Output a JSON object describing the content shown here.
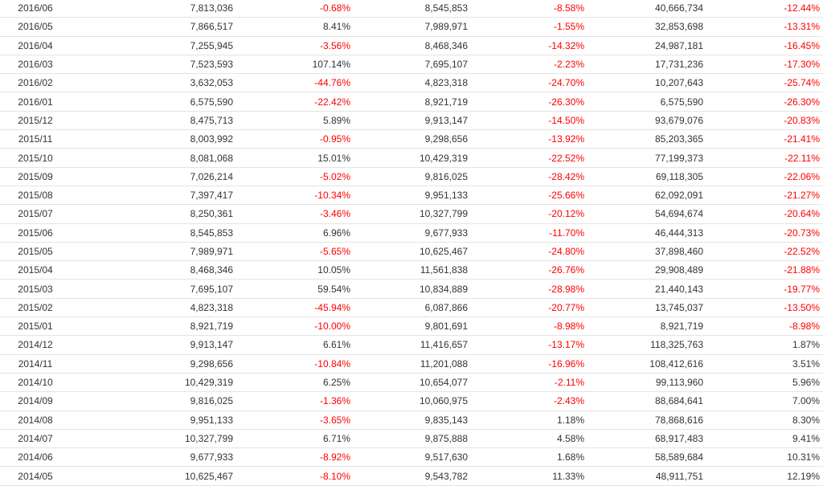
{
  "colors": {
    "negative": "#ff0000",
    "positive": "#333333",
    "border": "#e4e4e4"
  },
  "rows": [
    {
      "period": "2016/06",
      "monthly": "7,813,036",
      "monthly_change": "-0.68%",
      "prev_year": "8,545,853",
      "yoy_change": "-8.58%",
      "cumulative": "40,666,734",
      "cumulative_change": "-12.44%"
    },
    {
      "period": "2016/05",
      "monthly": "7,866,517",
      "monthly_change": "8.41%",
      "prev_year": "7,989,971",
      "yoy_change": "-1.55%",
      "cumulative": "32,853,698",
      "cumulative_change": "-13.31%"
    },
    {
      "period": "2016/04",
      "monthly": "7,255,945",
      "monthly_change": "-3.56%",
      "prev_year": "8,468,346",
      "yoy_change": "-14.32%",
      "cumulative": "24,987,181",
      "cumulative_change": "-16.45%"
    },
    {
      "period": "2016/03",
      "monthly": "7,523,593",
      "monthly_change": "107.14%",
      "prev_year": "7,695,107",
      "yoy_change": "-2.23%",
      "cumulative": "17,731,236",
      "cumulative_change": "-17.30%"
    },
    {
      "period": "2016/02",
      "monthly": "3,632,053",
      "monthly_change": "-44.76%",
      "prev_year": "4,823,318",
      "yoy_change": "-24.70%",
      "cumulative": "10,207,643",
      "cumulative_change": "-25.74%"
    },
    {
      "period": "2016/01",
      "monthly": "6,575,590",
      "monthly_change": "-22.42%",
      "prev_year": "8,921,719",
      "yoy_change": "-26.30%",
      "cumulative": "6,575,590",
      "cumulative_change": "-26.30%"
    },
    {
      "period": "2015/12",
      "monthly": "8,475,713",
      "monthly_change": "5.89%",
      "prev_year": "9,913,147",
      "yoy_change": "-14.50%",
      "cumulative": "93,679,076",
      "cumulative_change": "-20.83%"
    },
    {
      "period": "2015/11",
      "monthly": "8,003,992",
      "monthly_change": "-0.95%",
      "prev_year": "9,298,656",
      "yoy_change": "-13.92%",
      "cumulative": "85,203,365",
      "cumulative_change": "-21.41%"
    },
    {
      "period": "2015/10",
      "monthly": "8,081,068",
      "monthly_change": "15.01%",
      "prev_year": "10,429,319",
      "yoy_change": "-22.52%",
      "cumulative": "77,199,373",
      "cumulative_change": "-22.11%"
    },
    {
      "period": "2015/09",
      "monthly": "7,026,214",
      "monthly_change": "-5.02%",
      "prev_year": "9,816,025",
      "yoy_change": "-28.42%",
      "cumulative": "69,118,305",
      "cumulative_change": "-22.06%"
    },
    {
      "period": "2015/08",
      "monthly": "7,397,417",
      "monthly_change": "-10.34%",
      "prev_year": "9,951,133",
      "yoy_change": "-25.66%",
      "cumulative": "62,092,091",
      "cumulative_change": "-21.27%"
    },
    {
      "period": "2015/07",
      "monthly": "8,250,361",
      "monthly_change": "-3.46%",
      "prev_year": "10,327,799",
      "yoy_change": "-20.12%",
      "cumulative": "54,694,674",
      "cumulative_change": "-20.64%"
    },
    {
      "period": "2015/06",
      "monthly": "8,545,853",
      "monthly_change": "6.96%",
      "prev_year": "9,677,933",
      "yoy_change": "-11.70%",
      "cumulative": "46,444,313",
      "cumulative_change": "-20.73%"
    },
    {
      "period": "2015/05",
      "monthly": "7,989,971",
      "monthly_change": "-5.65%",
      "prev_year": "10,625,467",
      "yoy_change": "-24.80%",
      "cumulative": "37,898,460",
      "cumulative_change": "-22.52%"
    },
    {
      "period": "2015/04",
      "monthly": "8,468,346",
      "monthly_change": "10.05%",
      "prev_year": "11,561,838",
      "yoy_change": "-26.76%",
      "cumulative": "29,908,489",
      "cumulative_change": "-21.88%"
    },
    {
      "period": "2015/03",
      "monthly": "7,695,107",
      "monthly_change": "59.54%",
      "prev_year": "10,834,889",
      "yoy_change": "-28.98%",
      "cumulative": "21,440,143",
      "cumulative_change": "-19.77%"
    },
    {
      "period": "2015/02",
      "monthly": "4,823,318",
      "monthly_change": "-45.94%",
      "prev_year": "6,087,866",
      "yoy_change": "-20.77%",
      "cumulative": "13,745,037",
      "cumulative_change": "-13.50%"
    },
    {
      "period": "2015/01",
      "monthly": "8,921,719",
      "monthly_change": "-10.00%",
      "prev_year": "9,801,691",
      "yoy_change": "-8.98%",
      "cumulative": "8,921,719",
      "cumulative_change": "-8.98%"
    },
    {
      "period": "2014/12",
      "monthly": "9,913,147",
      "monthly_change": "6.61%",
      "prev_year": "11,416,657",
      "yoy_change": "-13.17%",
      "cumulative": "118,325,763",
      "cumulative_change": "1.87%"
    },
    {
      "period": "2014/11",
      "monthly": "9,298,656",
      "monthly_change": "-10.84%",
      "prev_year": "11,201,088",
      "yoy_change": "-16.96%",
      "cumulative": "108,412,616",
      "cumulative_change": "3.51%"
    },
    {
      "period": "2014/10",
      "monthly": "10,429,319",
      "monthly_change": "6.25%",
      "prev_year": "10,654,077",
      "yoy_change": "-2.11%",
      "cumulative": "99,113,960",
      "cumulative_change": "5.96%"
    },
    {
      "period": "2014/09",
      "monthly": "9,816,025",
      "monthly_change": "-1.36%",
      "prev_year": "10,060,975",
      "yoy_change": "-2.43%",
      "cumulative": "88,684,641",
      "cumulative_change": "7.00%"
    },
    {
      "period": "2014/08",
      "monthly": "9,951,133",
      "monthly_change": "-3.65%",
      "prev_year": "9,835,143",
      "yoy_change": "1.18%",
      "cumulative": "78,868,616",
      "cumulative_change": "8.30%"
    },
    {
      "period": "2014/07",
      "monthly": "10,327,799",
      "monthly_change": "6.71%",
      "prev_year": "9,875,888",
      "yoy_change": "4.58%",
      "cumulative": "68,917,483",
      "cumulative_change": "9.41%"
    },
    {
      "period": "2014/06",
      "monthly": "9,677,933",
      "monthly_change": "-8.92%",
      "prev_year": "9,517,630",
      "yoy_change": "1.68%",
      "cumulative": "58,589,684",
      "cumulative_change": "10.31%"
    },
    {
      "period": "2014/05",
      "monthly": "10,625,467",
      "monthly_change": "-8.10%",
      "prev_year": "9,543,782",
      "yoy_change": "11.33%",
      "cumulative": "48,911,751",
      "cumulative_change": "12.19%"
    }
  ]
}
